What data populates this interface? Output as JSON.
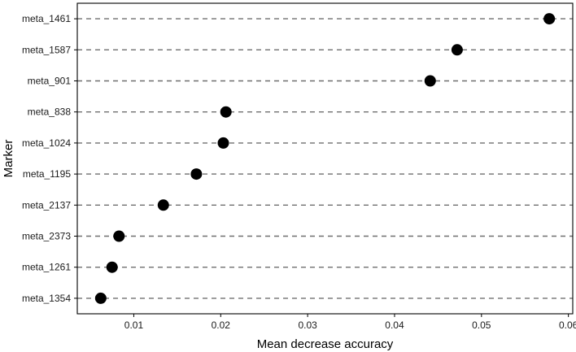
{
  "chart_data": {
    "type": "scatter",
    "style": "dot-plot",
    "xlabel": "Mean decrease accuracy",
    "ylabel": "Marker",
    "xlim": [
      0.0035,
      0.0605
    ],
    "xticks": [
      0.01,
      0.02,
      0.03,
      0.04,
      0.05,
      0.06
    ],
    "xtick_labels": [
      "0.01",
      "0.02",
      "0.03",
      "0.04",
      "0.05",
      "0.06"
    ],
    "categories": [
      "meta_1461",
      "meta_1587",
      "meta_901",
      "meta_838",
      "meta_1024",
      "meta_1195",
      "meta_2137",
      "meta_2373",
      "meta_1261",
      "meta_1354"
    ],
    "values": [
      0.0578,
      0.0472,
      0.0441,
      0.0206,
      0.0203,
      0.0172,
      0.0134,
      0.0083,
      0.0075,
      0.0062
    ],
    "grid": "horizontal-dashed",
    "legend": "none",
    "colors": {
      "marker": "#000000",
      "gridline": "#6f6f6f",
      "frame": "#000000"
    }
  }
}
